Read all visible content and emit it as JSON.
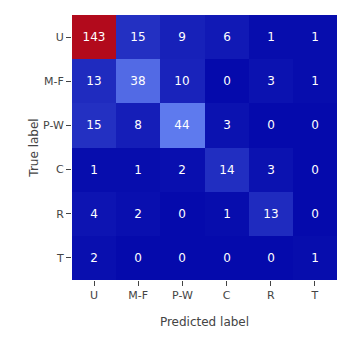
{
  "chart_data": {
    "type": "heatmap",
    "x": [
      "U",
      "M-F",
      "P-W",
      "C",
      "R",
      "T"
    ],
    "y": [
      "U",
      "M-F",
      "P-W",
      "C",
      "R",
      "T"
    ],
    "cells": [
      [
        143,
        15,
        9,
        6,
        1,
        1
      ],
      [
        13,
        38,
        10,
        0,
        3,
        1
      ],
      [
        15,
        8,
        44,
        3,
        0,
        0
      ],
      [
        1,
        1,
        2,
        14,
        3,
        0
      ],
      [
        4,
        2,
        0,
        1,
        13,
        0
      ],
      [
        2,
        0,
        0,
        0,
        0,
        1
      ]
    ],
    "xlabel": "Predicted label",
    "ylabel": "True label",
    "data_labels": true,
    "grid": false
  }
}
